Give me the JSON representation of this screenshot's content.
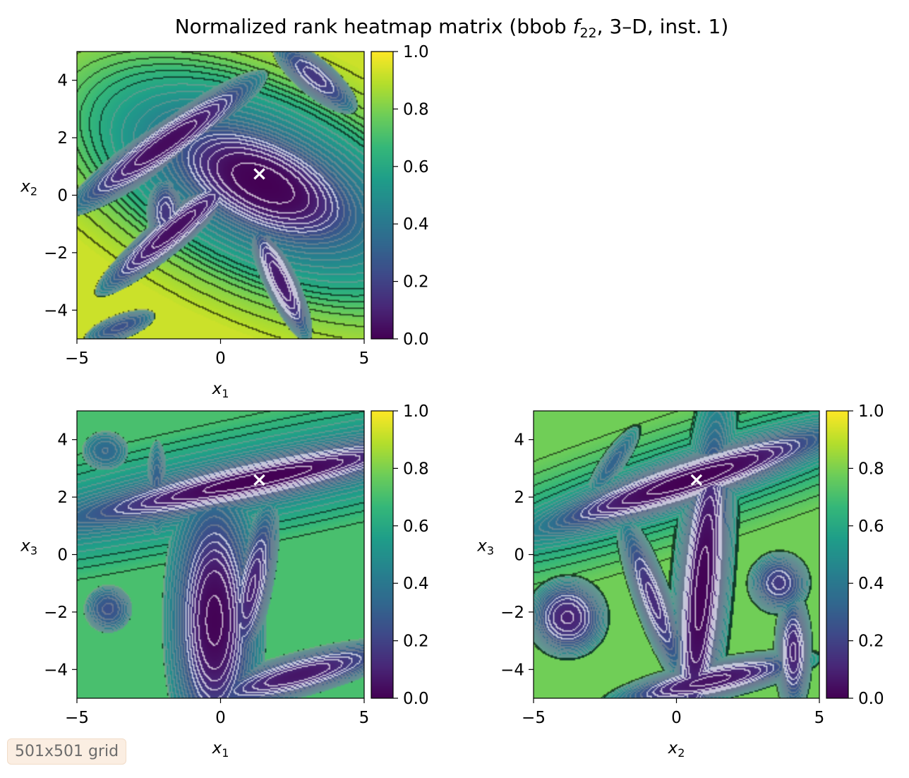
{
  "figure": {
    "title_main": "Normalized rank heatmap matrix (bbob ",
    "title_f": "f",
    "title_sub": "22",
    "title_rest": ", 3–D, inst. 1)",
    "badge": "501x501 grid"
  },
  "chart_data": [
    {
      "type": "heatmap",
      "position": "top-left",
      "xvar": "x",
      "xsub": "1",
      "yvar": "x",
      "ysub": "2",
      "xlim": [
        -5,
        5
      ],
      "ylim": [
        -5,
        5
      ],
      "xticks": [
        -5,
        0,
        5
      ],
      "xtick_labels": [
        "−5",
        "0",
        "5"
      ],
      "yticks": [
        -4,
        -2,
        0,
        2,
        4
      ],
      "ytick_labels": [
        "−4",
        "−2",
        "0",
        "2",
        "4"
      ],
      "value_range": [
        0.0,
        1.0
      ],
      "colormap": "viridis",
      "colorbar_ticks": [
        0.0,
        0.2,
        0.4,
        0.6,
        0.8,
        1.0
      ],
      "colorbar_labels": [
        "0.0",
        "0.2",
        "0.4",
        "0.6",
        "0.8",
        "1.0"
      ],
      "optimum": {
        "x": 1.35,
        "y": 0.75,
        "marker": "×"
      },
      "basins": [
        {
          "x": 1.5,
          "y": 0.4,
          "sx": 2.0,
          "sy": 0.95,
          "angle_deg": -25,
          "depth": 1.0
        },
        {
          "x": -1.9,
          "y": 1.8,
          "sx": 2.8,
          "sy": 0.5,
          "angle_deg": 35,
          "depth": 0.82
        },
        {
          "x": -1.6,
          "y": -1.2,
          "sx": 2.4,
          "sy": 0.45,
          "angle_deg": 40,
          "depth": 0.8
        },
        {
          "x": 2.1,
          "y": -3.0,
          "sx": 1.8,
          "sy": 0.45,
          "angle_deg": -65,
          "depth": 0.72
        },
        {
          "x": -1.9,
          "y": -0.6,
          "sx": 0.7,
          "sy": 1.3,
          "angle_deg": 0,
          "depth": 0.55
        },
        {
          "x": 3.3,
          "y": 4.1,
          "sx": 2.0,
          "sy": 0.7,
          "angle_deg": -40,
          "depth": 0.55
        },
        {
          "x": -3.5,
          "y": -4.6,
          "sx": 1.8,
          "sy": 0.6,
          "angle_deg": 20,
          "depth": 0.45
        }
      ]
    },
    {
      "type": "heatmap",
      "position": "bottom-left",
      "xvar": "x",
      "xsub": "1",
      "yvar": "x",
      "ysub": "3",
      "xlim": [
        -5,
        5
      ],
      "ylim": [
        -5,
        5
      ],
      "xticks": [
        -5,
        0,
        5
      ],
      "xtick_labels": [
        "−5",
        "0",
        "5"
      ],
      "yticks": [
        -4,
        -2,
        0,
        2,
        4
      ],
      "ytick_labels": [
        "−4",
        "−2",
        "0",
        "2",
        "4"
      ],
      "value_range": [
        0.0,
        1.0
      ],
      "colormap": "viridis",
      "colorbar_ticks": [
        0.0,
        0.2,
        0.4,
        0.6,
        0.8,
        1.0
      ],
      "colorbar_labels": [
        "0.0",
        "0.2",
        "0.4",
        "0.6",
        "0.8",
        "1.0"
      ],
      "optimum": {
        "x": 1.35,
        "y": 2.6,
        "marker": "×"
      },
      "basins": [
        {
          "x": 1.3,
          "y": 2.6,
          "sx": 4.0,
          "sy": 0.42,
          "angle_deg": 12,
          "depth": 1.0
        },
        {
          "x": -0.2,
          "y": -2.3,
          "sx": 0.85,
          "sy": 2.6,
          "angle_deg": 0,
          "depth": 0.95
        },
        {
          "x": 1.1,
          "y": -1.2,
          "sx": 0.55,
          "sy": 2.5,
          "angle_deg": -12,
          "depth": 0.72
        },
        {
          "x": 2.7,
          "y": -4.2,
          "sx": 2.8,
          "sy": 0.55,
          "angle_deg": 15,
          "depth": 0.78
        },
        {
          "x": -3.9,
          "y": -1.9,
          "sx": 1.0,
          "sy": 1.0,
          "angle_deg": 0,
          "depth": 0.5
        },
        {
          "x": -4.0,
          "y": 3.6,
          "sx": 1.3,
          "sy": 1.1,
          "angle_deg": 0,
          "depth": 0.4
        },
        {
          "x": -2.2,
          "y": 2.3,
          "sx": 0.5,
          "sy": 2.3,
          "angle_deg": 0,
          "depth": 0.45
        }
      ]
    },
    {
      "type": "heatmap",
      "position": "bottom-right",
      "xvar": "x",
      "xsub": "2",
      "yvar": "x",
      "ysub": "3",
      "xlim": [
        -5,
        5
      ],
      "ylim": [
        -5,
        5
      ],
      "xticks": [
        -5,
        0,
        5
      ],
      "xtick_labels": [
        "−5",
        "0",
        "5"
      ],
      "yticks": [
        -4,
        -2,
        0,
        2,
        4
      ],
      "ytick_labels": [
        "−4",
        "−2",
        "0",
        "2",
        "4"
      ],
      "value_range": [
        0.0,
        1.0
      ],
      "colormap": "viridis",
      "colorbar_ticks": [
        0.0,
        0.2,
        0.4,
        0.6,
        0.8,
        1.0
      ],
      "colorbar_labels": [
        "0.0",
        "0.2",
        "0.4",
        "0.6",
        "0.8",
        "1.0"
      ],
      "optimum": {
        "x": 0.7,
        "y": 2.6,
        "marker": "×"
      },
      "basins": [
        {
          "x": 0.5,
          "y": 2.6,
          "sx": 3.2,
          "sy": 0.45,
          "angle_deg": 18,
          "depth": 1.0
        },
        {
          "x": 0.9,
          "y": -1.2,
          "sx": 0.5,
          "sy": 3.6,
          "angle_deg": -5,
          "depth": 0.97
        },
        {
          "x": 1.2,
          "y": -4.4,
          "sx": 2.7,
          "sy": 0.5,
          "angle_deg": 12,
          "depth": 0.8
        },
        {
          "x": -3.8,
          "y": -2.2,
          "sx": 1.2,
          "sy": 1.2,
          "angle_deg": 0,
          "depth": 0.7
        },
        {
          "x": 3.6,
          "y": -1.0,
          "sx": 1.1,
          "sy": 1.1,
          "angle_deg": 0,
          "depth": 0.6
        },
        {
          "x": -0.8,
          "y": -1.6,
          "sx": 0.6,
          "sy": 3.0,
          "angle_deg": 20,
          "depth": 0.65
        },
        {
          "x": 4.1,
          "y": -3.4,
          "sx": 0.55,
          "sy": 1.8,
          "angle_deg": 0,
          "depth": 0.7
        },
        {
          "x": -2.2,
          "y": 3.2,
          "sx": 0.6,
          "sy": 2.2,
          "angle_deg": -35,
          "depth": 0.45
        }
      ]
    }
  ]
}
